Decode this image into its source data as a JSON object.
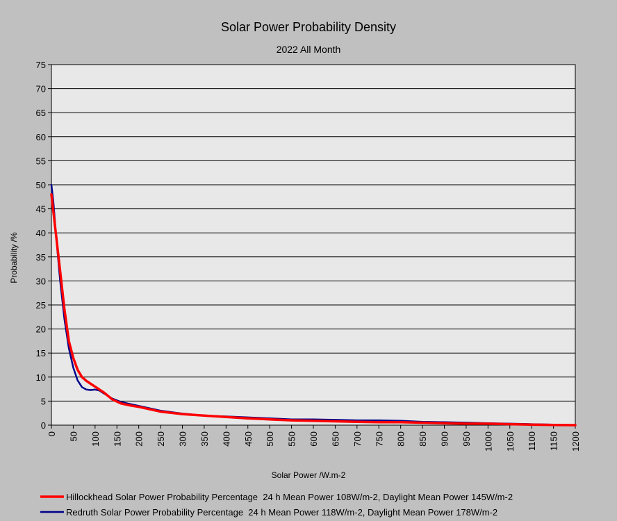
{
  "chart_data": {
    "type": "line",
    "title": "Solar Power Probability Density",
    "subtitle": "2022 All Month",
    "xlabel": "Solar Power /W.m-2",
    "ylabel": "Probability /%",
    "xlim": [
      0,
      1200
    ],
    "ylim": [
      0,
      75
    ],
    "x_ticks": [
      0,
      50,
      100,
      150,
      200,
      250,
      300,
      350,
      400,
      450,
      500,
      550,
      600,
      650,
      700,
      750,
      800,
      850,
      900,
      950,
      1000,
      1050,
      1100,
      1150,
      1200
    ],
    "y_ticks": [
      0,
      5,
      10,
      15,
      20,
      25,
      30,
      35,
      40,
      45,
      50,
      55,
      60,
      65,
      70,
      75
    ],
    "grid": "horizontal",
    "legend_position": "bottom",
    "colors": {
      "background": "#c0c0c0",
      "plot_area": "#e8e8e8",
      "grid": "#000000"
    },
    "series": [
      {
        "name": "Hillockhead Solar Power Probability Percentage  24 h Mean Power 108W/m-2, Daylight Mean Power 145W/m-2",
        "color": "#ff0000",
        "x": [
          0,
          10,
          20,
          30,
          40,
          50,
          60,
          70,
          80,
          90,
          100,
          120,
          140,
          160,
          180,
          200,
          250,
          300,
          350,
          400,
          450,
          500,
          550,
          600,
          650,
          700,
          750,
          800,
          850,
          900,
          950,
          1000,
          1050,
          1100,
          1150,
          1200
        ],
        "y": [
          48,
          40,
          32,
          24,
          17.5,
          14,
          11.5,
          10,
          9.2,
          8.6,
          8,
          6.8,
          5.3,
          4.5,
          4.1,
          3.8,
          2.8,
          2.3,
          2.0,
          1.7,
          1.4,
          1.2,
          1.0,
          0.9,
          0.8,
          0.7,
          0.6,
          0.6,
          0.5,
          0.4,
          0.3,
          0.3,
          0.2,
          0.1,
          0.05,
          0
        ]
      },
      {
        "name": "Redruth Solar Power Probability Percentage  24 h Mean Power 118W/m-2, Daylight Mean Power 178W/m-2",
        "color": "#00008b",
        "x": [
          0,
          5,
          10,
          20,
          30,
          40,
          50,
          60,
          70,
          80,
          90,
          100,
          110,
          120,
          140,
          160,
          180,
          200,
          250,
          300,
          350,
          400,
          450,
          500,
          550,
          600,
          650,
          700,
          750,
          800,
          850,
          900,
          950,
          1000,
          1050,
          1100,
          1150,
          1200
        ],
        "y": [
          50,
          46,
          40,
          30,
          22,
          16,
          12,
          9.3,
          7.9,
          7.4,
          7.3,
          7.4,
          7.2,
          6.6,
          5.5,
          4.8,
          4.4,
          4.0,
          3.0,
          2.4,
          2.0,
          1.8,
          1.6,
          1.4,
          1.2,
          1.2,
          1.1,
          1.0,
          1.0,
          0.9,
          0.7,
          0.6,
          0.5,
          0.4,
          0.3,
          0.2,
          0.1,
          0
        ]
      }
    ]
  }
}
